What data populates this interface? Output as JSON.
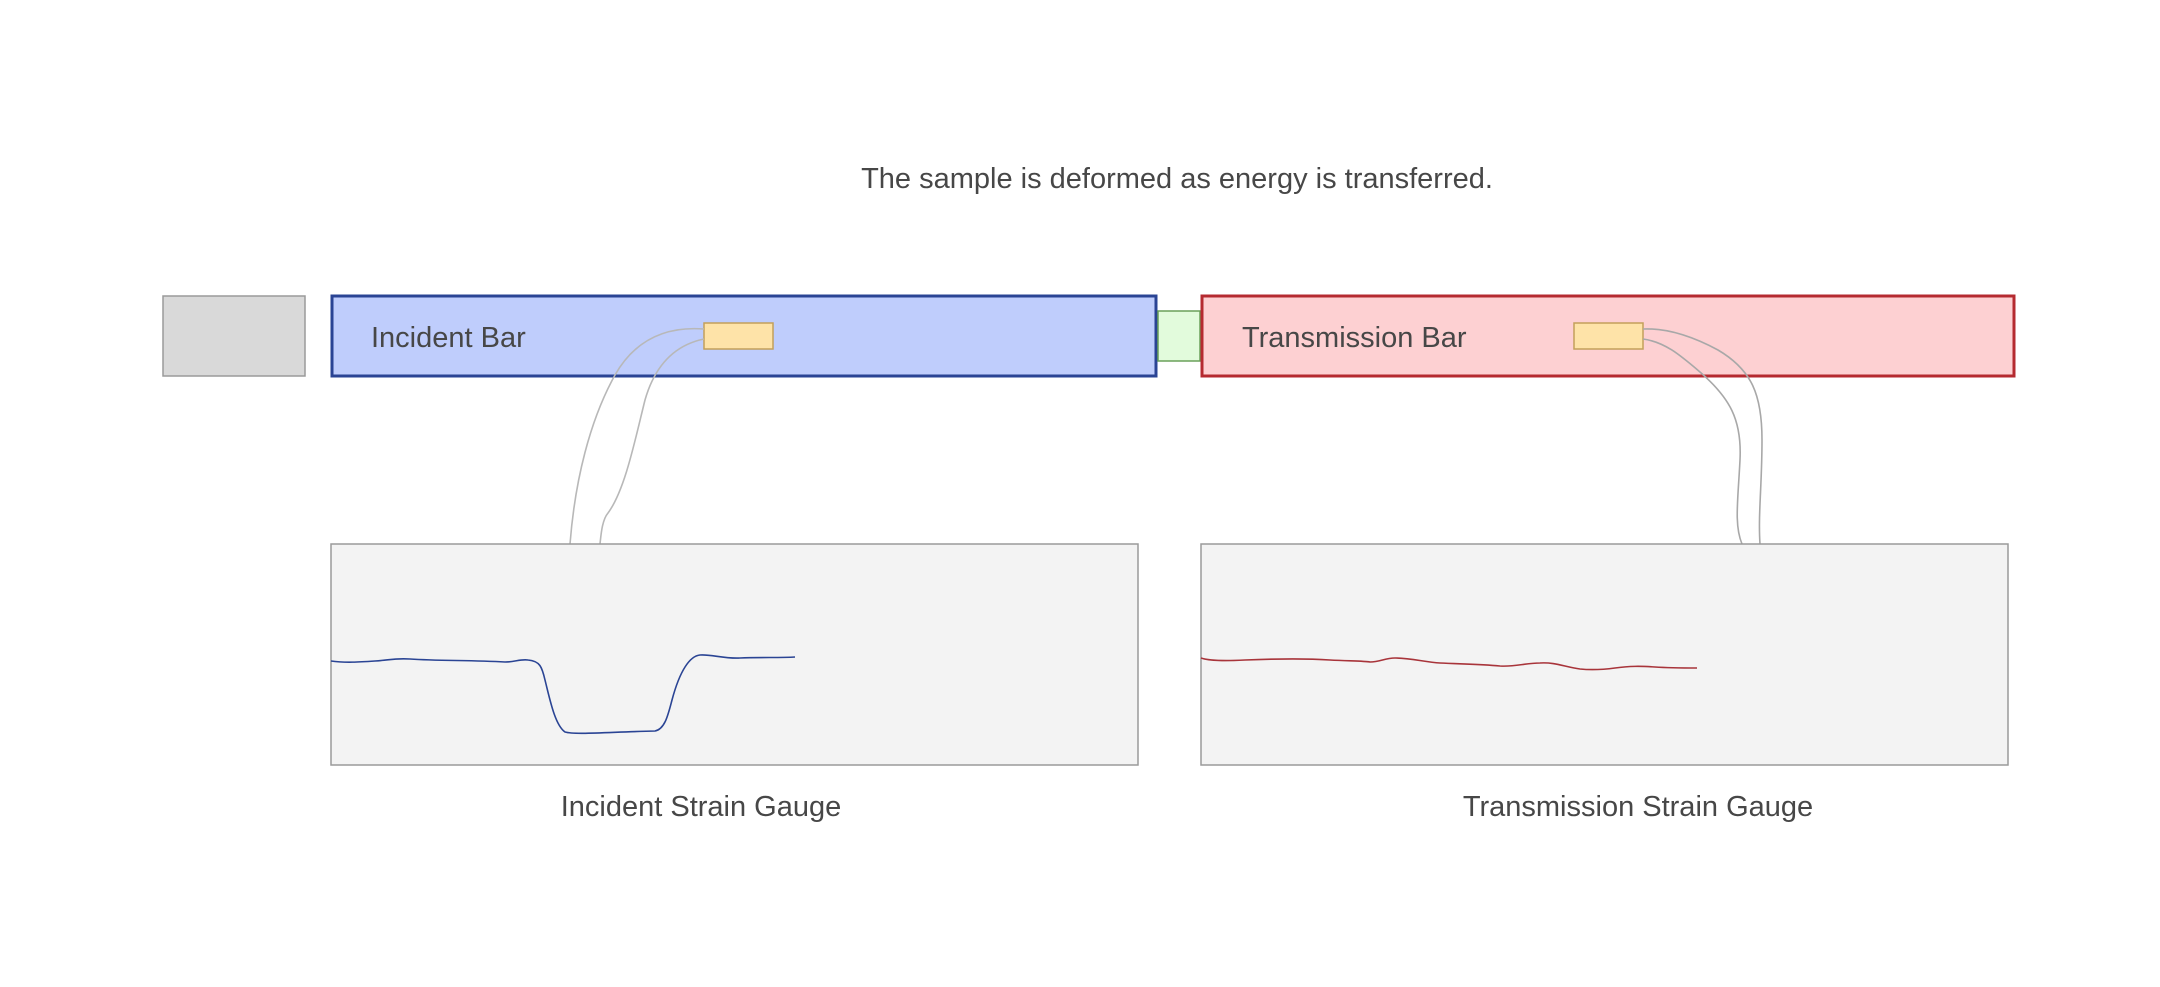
{
  "headline": "The sample is deformed as energy is transferred.",
  "incident_bar": {
    "label": "Incident Bar"
  },
  "transmission_bar": {
    "label": "Transmission Bar"
  },
  "incident_gauge": {
    "label": "Incident Strain Gauge"
  },
  "transmission_gauge": {
    "label": "Transmission Strain Gauge"
  },
  "colors": {
    "striker_fill": "#d9d9d9",
    "incident_fill": "#bfcdfc",
    "incident_stroke": "#2a4494",
    "sample_fill": "#e2fbdc",
    "sample_stroke": "#6aa05a",
    "transmission_fill": "#fdd0d2",
    "transmission_stroke": "#b52a30",
    "gauge_fill": "#fee3a8",
    "gauge_stroke": "#c4a05a",
    "panel_fill": "#f3f3f3",
    "panel_stroke": "#9a9a9a",
    "wire": "#b0b0b0",
    "incident_signal": "#2a4494",
    "transmission_signal": "#a8343a"
  }
}
